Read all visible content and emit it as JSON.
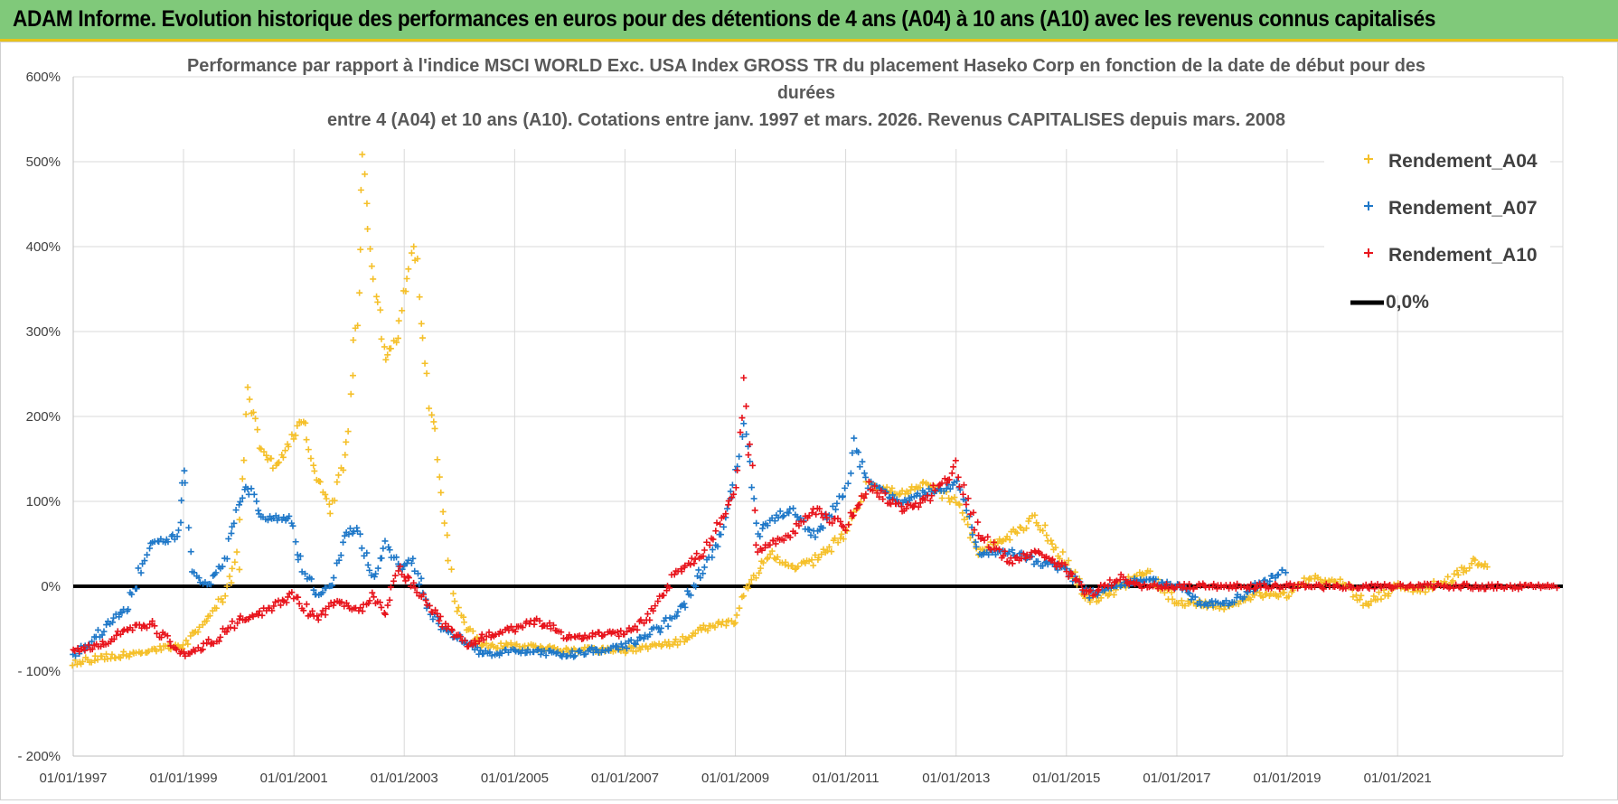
{
  "banner": {
    "title": "ADAM Informe. Evolution historique des performances en euros pour des détentions de 4 ans (A04) à 10 ans (A10) avec les revenus connus capitalisés"
  },
  "colors": {
    "banner_bg": "#80c97a",
    "banner_border": "#e8c21a",
    "A04": "#f5c02a",
    "A07": "#1f78c8",
    "A10": "#e8141c",
    "zero_line": "#000000",
    "grid": "#d9d9d9"
  },
  "chart_data": {
    "type": "scatter",
    "title_lines": [
      "Performance par rapport à l'indice MSCI WORLD Exc. USA Index GROSS TR  du placement Haseko Corp en fonction de la date de début pour des",
      "durées",
      "entre 4 (A04) et 10 ans (A10). Cotations entre janv. 1997 et mars. 2026. Revenus CAPITALISES depuis mars. 2008"
    ],
    "x_axis": {
      "type": "date",
      "range": [
        "1997-01-01",
        "2023-12-31"
      ],
      "tick_labels": [
        "01/01/1997",
        "01/01/1999",
        "01/01/2001",
        "01/01/2003",
        "01/01/2005",
        "01/01/2007",
        "01/01/2009",
        "01/01/2011",
        "01/01/2013",
        "01/01/2015",
        "01/01/2017",
        "01/01/2019",
        "01/01/2021"
      ],
      "tick_dates": [
        "1997-01-01",
        "1999-01-01",
        "2001-01-01",
        "2003-01-01",
        "2005-01-01",
        "2007-01-01",
        "2009-01-01",
        "2011-01-01",
        "2013-01-01",
        "2015-01-01",
        "2017-01-01",
        "2019-01-01",
        "2021-01-01"
      ]
    },
    "y_axis": {
      "unit": "%",
      "range": [
        -200,
        600
      ],
      "tick_values": [
        600,
        500,
        400,
        300,
        200,
        100,
        0,
        -100,
        -200
      ],
      "tick_labels": [
        "600%",
        "500%",
        "400%",
        "300%",
        "200%",
        "100%",
        "0%",
        "- 100%",
        "- 200%"
      ]
    },
    "grid": true,
    "legend_position": "top-right",
    "series": [
      {
        "name": "Rendement_A04",
        "marker": "plus",
        "color": "#f5c02a",
        "points": [
          [
            "1997-01-01",
            -90
          ],
          [
            "1997-06-01",
            -85
          ],
          [
            "1998-01-01",
            -80
          ],
          [
            "1998-06-01",
            -75
          ],
          [
            "1999-01-01",
            -70
          ],
          [
            "1999-06-01",
            -40
          ],
          [
            "1999-10-01",
            -10
          ],
          [
            "2000-01-01",
            40
          ],
          [
            "2000-03-01",
            230
          ],
          [
            "2000-06-01",
            160
          ],
          [
            "2000-09-01",
            140
          ],
          [
            "2000-12-01",
            170
          ],
          [
            "2001-03-01",
            200
          ],
          [
            "2001-06-01",
            130
          ],
          [
            "2001-09-01",
            90
          ],
          [
            "2001-12-01",
            150
          ],
          [
            "2002-03-01",
            320
          ],
          [
            "2002-04-01",
            500
          ],
          [
            "2002-06-01",
            380
          ],
          [
            "2002-09-01",
            270
          ],
          [
            "2002-12-01",
            300
          ],
          [
            "2003-03-01",
            420
          ],
          [
            "2003-06-01",
            240
          ],
          [
            "2003-09-01",
            120
          ],
          [
            "2003-12-01",
            -20
          ],
          [
            "2004-03-01",
            -50
          ],
          [
            "2004-06-01",
            -70
          ],
          [
            "2005-01-01",
            -70
          ],
          [
            "2006-01-01",
            -75
          ],
          [
            "2007-01-01",
            -75
          ],
          [
            "2008-01-01",
            -65
          ],
          [
            "2008-06-01",
            -50
          ],
          [
            "2009-01-01",
            -40
          ],
          [
            "2009-03-01",
            -10
          ],
          [
            "2009-06-01",
            20
          ],
          [
            "2009-09-01",
            40
          ],
          [
            "2010-01-01",
            20
          ],
          [
            "2010-06-01",
            30
          ],
          [
            "2011-01-01",
            60
          ],
          [
            "2011-06-01",
            120
          ],
          [
            "2012-01-01",
            110
          ],
          [
            "2012-06-01",
            120
          ],
          [
            "2013-01-01",
            100
          ],
          [
            "2013-06-01",
            40
          ],
          [
            "2014-01-01",
            60
          ],
          [
            "2014-06-01",
            80
          ],
          [
            "2015-01-01",
            30
          ],
          [
            "2015-06-01",
            -20
          ],
          [
            "2016-01-01",
            0
          ],
          [
            "2016-06-01",
            20
          ],
          [
            "2017-01-01",
            -20
          ],
          [
            "2017-06-01",
            -20
          ],
          [
            "2018-01-01",
            -25
          ],
          [
            "2018-06-01",
            -10
          ],
          [
            "2019-01-01",
            -10
          ],
          [
            "2019-06-01",
            10
          ],
          [
            "2020-01-01",
            5
          ],
          [
            "2020-06-01",
            -20
          ],
          [
            "2021-01-01",
            0
          ],
          [
            "2021-06-01",
            -5
          ],
          [
            "2022-01-01",
            10
          ],
          [
            "2022-06-01",
            30
          ],
          [
            "2022-09-01",
            20
          ]
        ]
      },
      {
        "name": "Rendement_A07",
        "marker": "plus",
        "color": "#1f78c8",
        "points": [
          [
            "1997-01-01",
            -80
          ],
          [
            "1997-06-01",
            -60
          ],
          [
            "1998-01-01",
            -20
          ],
          [
            "1998-06-01",
            50
          ],
          [
            "1998-12-01",
            60
          ],
          [
            "1999-01-01",
            140
          ],
          [
            "1999-03-01",
            20
          ],
          [
            "1999-06-01",
            0
          ],
          [
            "1999-10-01",
            30
          ],
          [
            "2000-01-01",
            100
          ],
          [
            "2000-03-01",
            120
          ],
          [
            "2000-06-01",
            80
          ],
          [
            "2000-12-01",
            80
          ],
          [
            "2001-03-01",
            20
          ],
          [
            "2001-06-01",
            -10
          ],
          [
            "2001-09-01",
            0
          ],
          [
            "2001-12-01",
            60
          ],
          [
            "2002-03-01",
            70
          ],
          [
            "2002-06-01",
            10
          ],
          [
            "2002-09-01",
            50
          ],
          [
            "2002-12-01",
            20
          ],
          [
            "2003-03-01",
            30
          ],
          [
            "2003-06-01",
            -20
          ],
          [
            "2003-09-01",
            -50
          ],
          [
            "2004-01-01",
            -60
          ],
          [
            "2004-06-01",
            -80
          ],
          [
            "2005-01-01",
            -75
          ],
          [
            "2006-01-01",
            -80
          ],
          [
            "2007-01-01",
            -70
          ],
          [
            "2007-06-01",
            -60
          ],
          [
            "2008-01-01",
            -30
          ],
          [
            "2008-06-01",
            20
          ],
          [
            "2008-10-01",
            60
          ],
          [
            "2009-01-01",
            130
          ],
          [
            "2009-03-01",
            190
          ],
          [
            "2009-06-01",
            60
          ],
          [
            "2009-09-01",
            80
          ],
          [
            "2010-01-01",
            90
          ],
          [
            "2010-06-01",
            60
          ],
          [
            "2011-01-01",
            110
          ],
          [
            "2011-03-01",
            170
          ],
          [
            "2011-06-01",
            120
          ],
          [
            "2012-01-01",
            100
          ],
          [
            "2012-06-01",
            110
          ],
          [
            "2013-01-01",
            120
          ],
          [
            "2013-03-01",
            100
          ],
          [
            "2013-06-01",
            40
          ],
          [
            "2014-01-01",
            40
          ],
          [
            "2014-06-01",
            30
          ],
          [
            "2015-01-01",
            20
          ],
          [
            "2015-06-01",
            -10
          ],
          [
            "2016-01-01",
            0
          ],
          [
            "2016-06-01",
            10
          ],
          [
            "2017-01-01",
            0
          ],
          [
            "2017-06-01",
            -20
          ],
          [
            "2018-01-01",
            -20
          ],
          [
            "2018-06-01",
            0
          ],
          [
            "2019-01-01",
            20
          ]
        ]
      },
      {
        "name": "Rendement_A10",
        "marker": "plus",
        "color": "#e8141c",
        "points": [
          [
            "1997-01-01",
            -75
          ],
          [
            "1997-06-01",
            -70
          ],
          [
            "1998-01-01",
            -50
          ],
          [
            "1998-06-01",
            -45
          ],
          [
            "1999-01-01",
            -80
          ],
          [
            "1999-06-01",
            -70
          ],
          [
            "2000-01-01",
            -40
          ],
          [
            "2000-06-01",
            -30
          ],
          [
            "2001-01-01",
            -10
          ],
          [
            "2001-06-01",
            -40
          ],
          [
            "2001-09-01",
            -20
          ],
          [
            "2001-12-01",
            -20
          ],
          [
            "2002-03-01",
            -30
          ],
          [
            "2002-06-01",
            -10
          ],
          [
            "2002-09-01",
            -30
          ],
          [
            "2002-12-01",
            20
          ],
          [
            "2003-03-01",
            0
          ],
          [
            "2003-06-01",
            -20
          ],
          [
            "2003-09-01",
            -40
          ],
          [
            "2004-03-01",
            -70
          ],
          [
            "2004-06-01",
            -60
          ],
          [
            "2005-01-01",
            -50
          ],
          [
            "2005-06-01",
            -40
          ],
          [
            "2006-01-01",
            -60
          ],
          [
            "2007-01-01",
            -55
          ],
          [
            "2007-06-01",
            -40
          ],
          [
            "2008-01-01",
            20
          ],
          [
            "2008-06-01",
            40
          ],
          [
            "2008-10-01",
            80
          ],
          [
            "2009-01-01",
            110
          ],
          [
            "2009-03-01",
            230
          ],
          [
            "2009-06-01",
            40
          ],
          [
            "2009-09-01",
            50
          ],
          [
            "2010-01-01",
            60
          ],
          [
            "2010-06-01",
            90
          ],
          [
            "2011-01-01",
            70
          ],
          [
            "2011-06-01",
            120
          ],
          [
            "2012-01-01",
            90
          ],
          [
            "2012-06-01",
            100
          ],
          [
            "2013-01-01",
            140
          ],
          [
            "2013-06-01",
            60
          ],
          [
            "2014-01-01",
            30
          ],
          [
            "2014-06-01",
            40
          ],
          [
            "2015-01-01",
            20
          ],
          [
            "2015-06-01",
            -10
          ],
          [
            "2016-01-01",
            10
          ],
          [
            "2016-06-01",
            0
          ],
          [
            "2017-01-01",
            0
          ],
          [
            "2018-01-01",
            0
          ],
          [
            "2019-01-01",
            0
          ],
          [
            "2020-01-01",
            0
          ],
          [
            "2021-01-01",
            0
          ],
          [
            "2022-01-01",
            0
          ],
          [
            "2023-01-01",
            0
          ],
          [
            "2023-12-01",
            0
          ]
        ]
      },
      {
        "name": "0,0%",
        "marker": "line",
        "color": "#000000",
        "points": [
          [
            "1997-01-01",
            0
          ],
          [
            "2023-12-31",
            0
          ]
        ]
      }
    ]
  }
}
